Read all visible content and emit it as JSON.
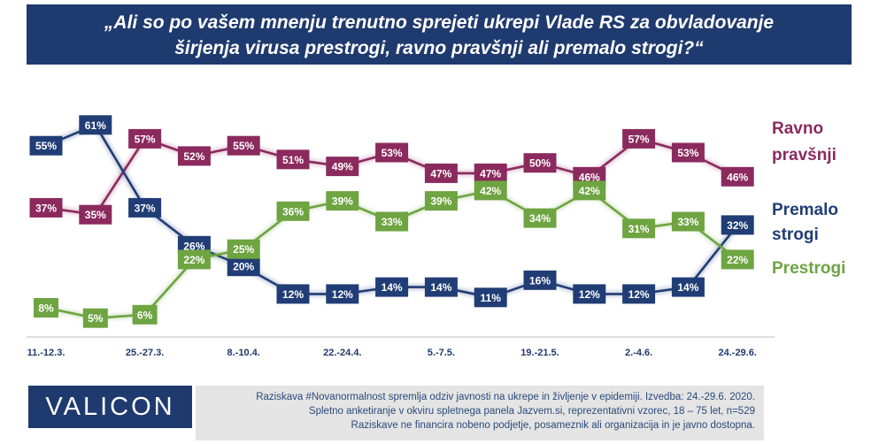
{
  "title": {
    "line1": "„Ali so po vašem mnenju trenutno sprejeti ukrepi Vlade RS za obvladovanje",
    "line2": "širjenja virusa prestrogi, ravno pravšnji ali premalo strogi?“"
  },
  "chart_data": {
    "type": "line",
    "x_tick_labels": [
      "11.-12.3.",
      "25.-27.3.",
      "8.-10.4.",
      "22.-24.4.",
      "5.-7.5.",
      "19.-21.5.",
      "2.-4.6.",
      "24.-29.6."
    ],
    "ylim": [
      0,
      65
    ],
    "grid": false,
    "legend": "labels at the end of each line on the right",
    "series": [
      {
        "name": "Ravno pravšnji",
        "color": "#8b2a5e",
        "values": [
          37,
          35,
          57,
          52,
          55,
          51,
          49,
          53,
          47,
          47,
          50,
          46,
          57,
          53,
          46
        ],
        "labels": [
          "37%",
          "35%",
          "57%",
          "52%",
          "55%",
          "51%",
          "49%",
          "53%",
          "47%",
          "47%",
          "50%",
          "46%",
          "57%",
          "53%",
          "46%"
        ]
      },
      {
        "name": "Premalo strogi",
        "color": "#213d75",
        "values": [
          55,
          61,
          37,
          26,
          20,
          12,
          12,
          14,
          14,
          11,
          16,
          12,
          12,
          14,
          32
        ],
        "labels": [
          "55%",
          "61%",
          "37%",
          "26%",
          "20%",
          "12%",
          "12%",
          "14%",
          "14%",
          "11%",
          "16%",
          "12%",
          "12%",
          "14%",
          "32%"
        ]
      },
      {
        "name": "Prestrogi",
        "color": "#6ea441",
        "values": [
          8,
          5,
          6,
          22,
          25,
          36,
          39,
          33,
          39,
          42,
          34,
          42,
          31,
          33,
          22
        ],
        "labels": [
          "8%",
          "5%",
          "6%",
          "22%",
          "25%",
          "36%",
          "39%",
          "33%",
          "39%",
          "42%",
          "34%",
          "42%",
          "31%",
          "33%",
          "22%"
        ]
      }
    ],
    "series_labels": {
      "ravno_line1": "Ravno",
      "ravno_line2": "pravšnji",
      "premalo_line1": "Premalo",
      "premalo_line2": "strogi",
      "prestrogi": "Prestrogi"
    }
  },
  "logo": "VALICON",
  "footnote": {
    "line1": "Raziskava #Novanormalnost spremlja odziv javnosti na ukrepe in življenje v epidemiji. Izvedba: 24.-29.6. 2020.",
    "line2": "Spletno anketiranje v okviru spletnega panela Jazvem.si, reprezentativni vzorec, 18 – 75 let, n=529",
    "line3": "Raziskave ne financira nobeno podjetje, posameznik ali organizacija in je javno dostopna."
  }
}
